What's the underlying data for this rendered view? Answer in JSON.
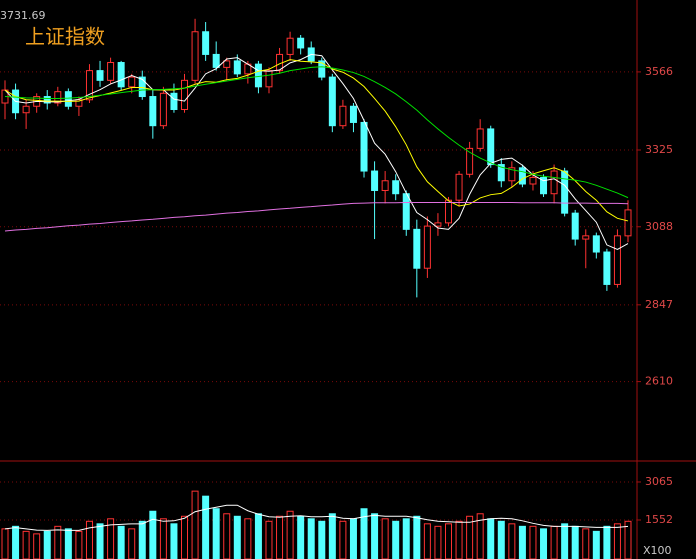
{
  "chart_data": [
    {
      "type": "candlestick",
      "title": "上证指数",
      "high_label": "3731.69",
      "ylim": [
        2368,
        3788
      ],
      "yticks": [
        3566,
        3325,
        3088,
        2847,
        2610
      ],
      "grid": true,
      "up_color": "#ff3232",
      "down_color": "#54ffff",
      "ohlc": [
        [
          3470,
          3540,
          3420,
          3510
        ],
        [
          3510,
          3530,
          3420,
          3440
        ],
        [
          3440,
          3480,
          3390,
          3460
        ],
        [
          3460,
          3500,
          3440,
          3490
        ],
        [
          3490,
          3510,
          3450,
          3470
        ],
        [
          3470,
          3520,
          3460,
          3505
        ],
        [
          3505,
          3515,
          3450,
          3460
        ],
        [
          3460,
          3490,
          3430,
          3480
        ],
        [
          3480,
          3590,
          3470,
          3570
        ],
        [
          3570,
          3600,
          3520,
          3540
        ],
        [
          3540,
          3610,
          3530,
          3595
        ],
        [
          3595,
          3600,
          3510,
          3520
        ],
        [
          3520,
          3560,
          3500,
          3550
        ],
        [
          3550,
          3570,
          3480,
          3490
        ],
        [
          3490,
          3510,
          3360,
          3400
        ],
        [
          3400,
          3520,
          3390,
          3500
        ],
        [
          3500,
          3530,
          3440,
          3450
        ],
        [
          3450,
          3560,
          3440,
          3540
        ],
        [
          3540,
          3730,
          3530,
          3690
        ],
        [
          3690,
          3720,
          3600,
          3620
        ],
        [
          3620,
          3660,
          3570,
          3580
        ],
        [
          3580,
          3610,
          3540,
          3600
        ],
        [
          3600,
          3620,
          3550,
          3560
        ],
        [
          3560,
          3600,
          3530,
          3590
        ],
        [
          3590,
          3600,
          3500,
          3520
        ],
        [
          3520,
          3580,
          3500,
          3570
        ],
        [
          3570,
          3640,
          3560,
          3620
        ],
        [
          3620,
          3690,
          3600,
          3670
        ],
        [
          3670,
          3680,
          3620,
          3640
        ],
        [
          3640,
          3660,
          3590,
          3600
        ],
        [
          3600,
          3610,
          3540,
          3550
        ],
        [
          3550,
          3560,
          3380,
          3400
        ],
        [
          3400,
          3480,
          3390,
          3460
        ],
        [
          3460,
          3470,
          3380,
          3410
        ],
        [
          3410,
          3420,
          3240,
          3260
        ],
        [
          3260,
          3290,
          3050,
          3200
        ],
        [
          3200,
          3260,
          3160,
          3230
        ],
        [
          3230,
          3250,
          3170,
          3190
        ],
        [
          3190,
          3200,
          3060,
          3080
        ],
        [
          3080,
          3110,
          2870,
          2960
        ],
        [
          2960,
          3120,
          2930,
          3090
        ],
        [
          3090,
          3130,
          3060,
          3100
        ],
        [
          3100,
          3180,
          3090,
          3170
        ],
        [
          3170,
          3260,
          3150,
          3250
        ],
        [
          3250,
          3350,
          3240,
          3330
        ],
        [
          3330,
          3420,
          3320,
          3390
        ],
        [
          3390,
          3400,
          3270,
          3280
        ],
        [
          3280,
          3300,
          3210,
          3230
        ],
        [
          3230,
          3290,
          3210,
          3270
        ],
        [
          3270,
          3280,
          3210,
          3220
        ],
        [
          3220,
          3260,
          3200,
          3240
        ],
        [
          3240,
          3250,
          3180,
          3190
        ],
        [
          3190,
          3280,
          3160,
          3260
        ],
        [
          3260,
          3270,
          3120,
          3130
        ],
        [
          3130,
          3140,
          3030,
          3050
        ],
        [
          3050,
          3080,
          2960,
          3060
        ],
        [
          3060,
          3070,
          2990,
          3010
        ],
        [
          3010,
          3020,
          2890,
          2910
        ],
        [
          2910,
          3080,
          2900,
          3060
        ],
        [
          3060,
          3170,
          3040,
          3140
        ]
      ],
      "lines": [
        {
          "color": "#ffffff",
          "values": [
            3510,
            3475,
            3470,
            3475,
            3474,
            3473,
            3477,
            3481,
            3497,
            3511,
            3529,
            3541,
            3555,
            3543,
            3511,
            3511,
            3482,
            3476,
            3516,
            3560,
            3576,
            3606,
            3610,
            3590,
            3570,
            3568,
            3572,
            3594,
            3604,
            3620,
            3616,
            3572,
            3530,
            3484,
            3416,
            3346,
            3312,
            3258,
            3192,
            3132,
            3110,
            3084,
            3080,
            3114,
            3188,
            3248,
            3284,
            3296,
            3300,
            3278,
            3248,
            3230,
            3236,
            3216,
            3174,
            3138,
            3102,
            3032,
            3018,
            3036
          ]
        },
        {
          "color": "#ffff00",
          "values": [
            3510,
            3490,
            3480,
            3478,
            3476,
            3476,
            3475,
            3476,
            3486,
            3493,
            3501,
            3509,
            3518,
            3518,
            3511,
            3510,
            3510,
            3516,
            3528,
            3536,
            3534,
            3542,
            3546,
            3556,
            3568,
            3574,
            3591,
            3604,
            3599,
            3597,
            3594,
            3575,
            3565,
            3547,
            3521,
            3484,
            3445,
            3397,
            3341,
            3273,
            3227,
            3197,
            3168,
            3152,
            3158,
            3177,
            3187,
            3191,
            3210,
            3236,
            3251,
            3261,
            3270,
            3258,
            3230,
            3197,
            3170,
            3134,
            3114,
            3106
          ]
        },
        {
          "color": "#00e000",
          "values": [
            3490,
            3488,
            3486,
            3485,
            3484,
            3484,
            3485,
            3487,
            3490,
            3494,
            3498,
            3502,
            3506,
            3510,
            3511,
            3512,
            3514,
            3516,
            3522,
            3528,
            3533,
            3538,
            3543,
            3548,
            3552,
            3556,
            3562,
            3570,
            3575,
            3580,
            3582,
            3578,
            3572,
            3564,
            3552,
            3536,
            3518,
            3498,
            3474,
            3448,
            3418,
            3390,
            3364,
            3340,
            3318,
            3300,
            3285,
            3272,
            3264,
            3258,
            3250,
            3244,
            3240,
            3236,
            3232,
            3226,
            3216,
            3204,
            3192,
            3178
          ]
        },
        {
          "color": "#e070e0",
          "values": [
            3075,
            3078,
            3080,
            3083,
            3085,
            3088,
            3091,
            3093,
            3096,
            3098,
            3101,
            3104,
            3106,
            3109,
            3111,
            3114,
            3117,
            3119,
            3122,
            3124,
            3127,
            3130,
            3132,
            3135,
            3137,
            3140,
            3143,
            3145,
            3148,
            3150,
            3153,
            3155,
            3158,
            3160,
            3161,
            3162,
            3162,
            3162,
            3163,
            3163,
            3163,
            3163,
            3163,
            3163,
            3163,
            3163,
            3163,
            3163,
            3163,
            3162,
            3162,
            3162,
            3162,
            3161,
            3161,
            3161,
            3160,
            3160,
            3160,
            3159
          ]
        }
      ]
    },
    {
      "type": "bar",
      "unit_label": "X100",
      "ylim": [
        0,
        3860
      ],
      "yticks": [
        3065,
        1552
      ],
      "grid": true,
      "values": [
        1200,
        1300,
        1100,
        1000,
        1100,
        1300,
        1200,
        1100,
        1500,
        1400,
        1600,
        1300,
        1200,
        1500,
        1900,
        1600,
        1400,
        1700,
        2700,
        2500,
        2000,
        1800,
        1700,
        1600,
        1800,
        1500,
        1700,
        1900,
        1700,
        1600,
        1500,
        1800,
        1500,
        1600,
        2000,
        1800,
        1600,
        1500,
        1600,
        1700,
        1400,
        1300,
        1400,
        1500,
        1700,
        1800,
        1600,
        1500,
        1400,
        1300,
        1300,
        1200,
        1300,
        1400,
        1300,
        1200,
        1100,
        1300,
        1400,
        1500
      ],
      "lines": [
        {
          "color": "#ffffff",
          "values": [
            1200,
            1250,
            1200,
            1150,
            1140,
            1160,
            1140,
            1140,
            1240,
            1300,
            1360,
            1380,
            1400,
            1400,
            1580,
            1500,
            1520,
            1620,
            1880,
            1980,
            2060,
            2140,
            2140,
            1920,
            1780,
            1680,
            1660,
            1700,
            1720,
            1680,
            1680,
            1700,
            1620,
            1600,
            1680,
            1740,
            1700,
            1700,
            1700,
            1640,
            1560,
            1500,
            1480,
            1460,
            1460,
            1540,
            1600,
            1620,
            1600,
            1520,
            1420,
            1340,
            1300,
            1300,
            1300,
            1280,
            1260,
            1260,
            1260,
            1300
          ]
        }
      ]
    }
  ]
}
